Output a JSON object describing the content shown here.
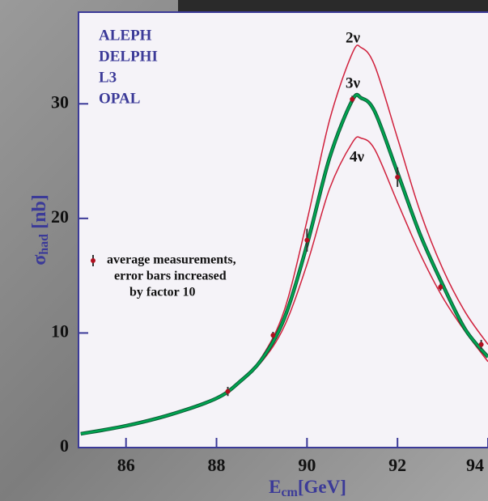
{
  "chart_data": {
    "type": "line",
    "x_label": [
      "E",
      "cm",
      "[GeV]"
    ],
    "y_label": [
      "σ",
      "had",
      " [nb]"
    ],
    "experiments": [
      "ALEPH",
      "DELPHI",
      "L3",
      "OPAL"
    ],
    "legend_text": [
      "average measurements,",
      "error bars increased",
      "by factor 10"
    ],
    "x": [
      85,
      86,
      87,
      88,
      88.5,
      89,
      89.5,
      90,
      90.5,
      91,
      91.2,
      91.5,
      92,
      92.5,
      93,
      93.5,
      94
    ],
    "series": [
      {
        "name": "2ν",
        "color": "#d0203c",
        "values": [
          1.2,
          1.9,
          2.9,
          4.3,
          5.7,
          7.9,
          12.0,
          19.8,
          28.6,
          34.4,
          34.9,
          33.3,
          27.0,
          20.6,
          15.6,
          11.8,
          9.0
        ]
      },
      {
        "name": "3ν",
        "color": "#00a551",
        "values": [
          1.2,
          1.9,
          2.9,
          4.3,
          5.7,
          7.7,
          11.3,
          17.7,
          25.3,
          30.3,
          30.5,
          29.3,
          24.0,
          18.6,
          14.2,
          10.3,
          7.9
        ]
      },
      {
        "name": "4ν",
        "color": "#d0203c",
        "values": [
          1.2,
          1.9,
          2.9,
          4.3,
          5.7,
          7.5,
          10.6,
          16.0,
          22.6,
          26.6,
          27.0,
          26.0,
          21.4,
          16.9,
          13.1,
          10.1,
          7.5
        ]
      }
    ],
    "measurements": {
      "color": "#b01020",
      "x": [
        88.25,
        89.25,
        90.0,
        91.0,
        92.0,
        92.95,
        93.85
      ],
      "values": [
        4.9,
        9.8,
        18.1,
        30.4,
        23.6,
        14.0,
        9.0
      ],
      "errors": [
        0.4,
        0.3,
        1.0,
        0.3,
        0.85,
        0.3,
        0.4
      ]
    },
    "xlim": [
      84.95,
      94
    ],
    "xticks": [
      86,
      88,
      90,
      92,
      94
    ],
    "ylim": [
      0,
      38
    ],
    "yticks": [
      0,
      10,
      20,
      30
    ]
  }
}
